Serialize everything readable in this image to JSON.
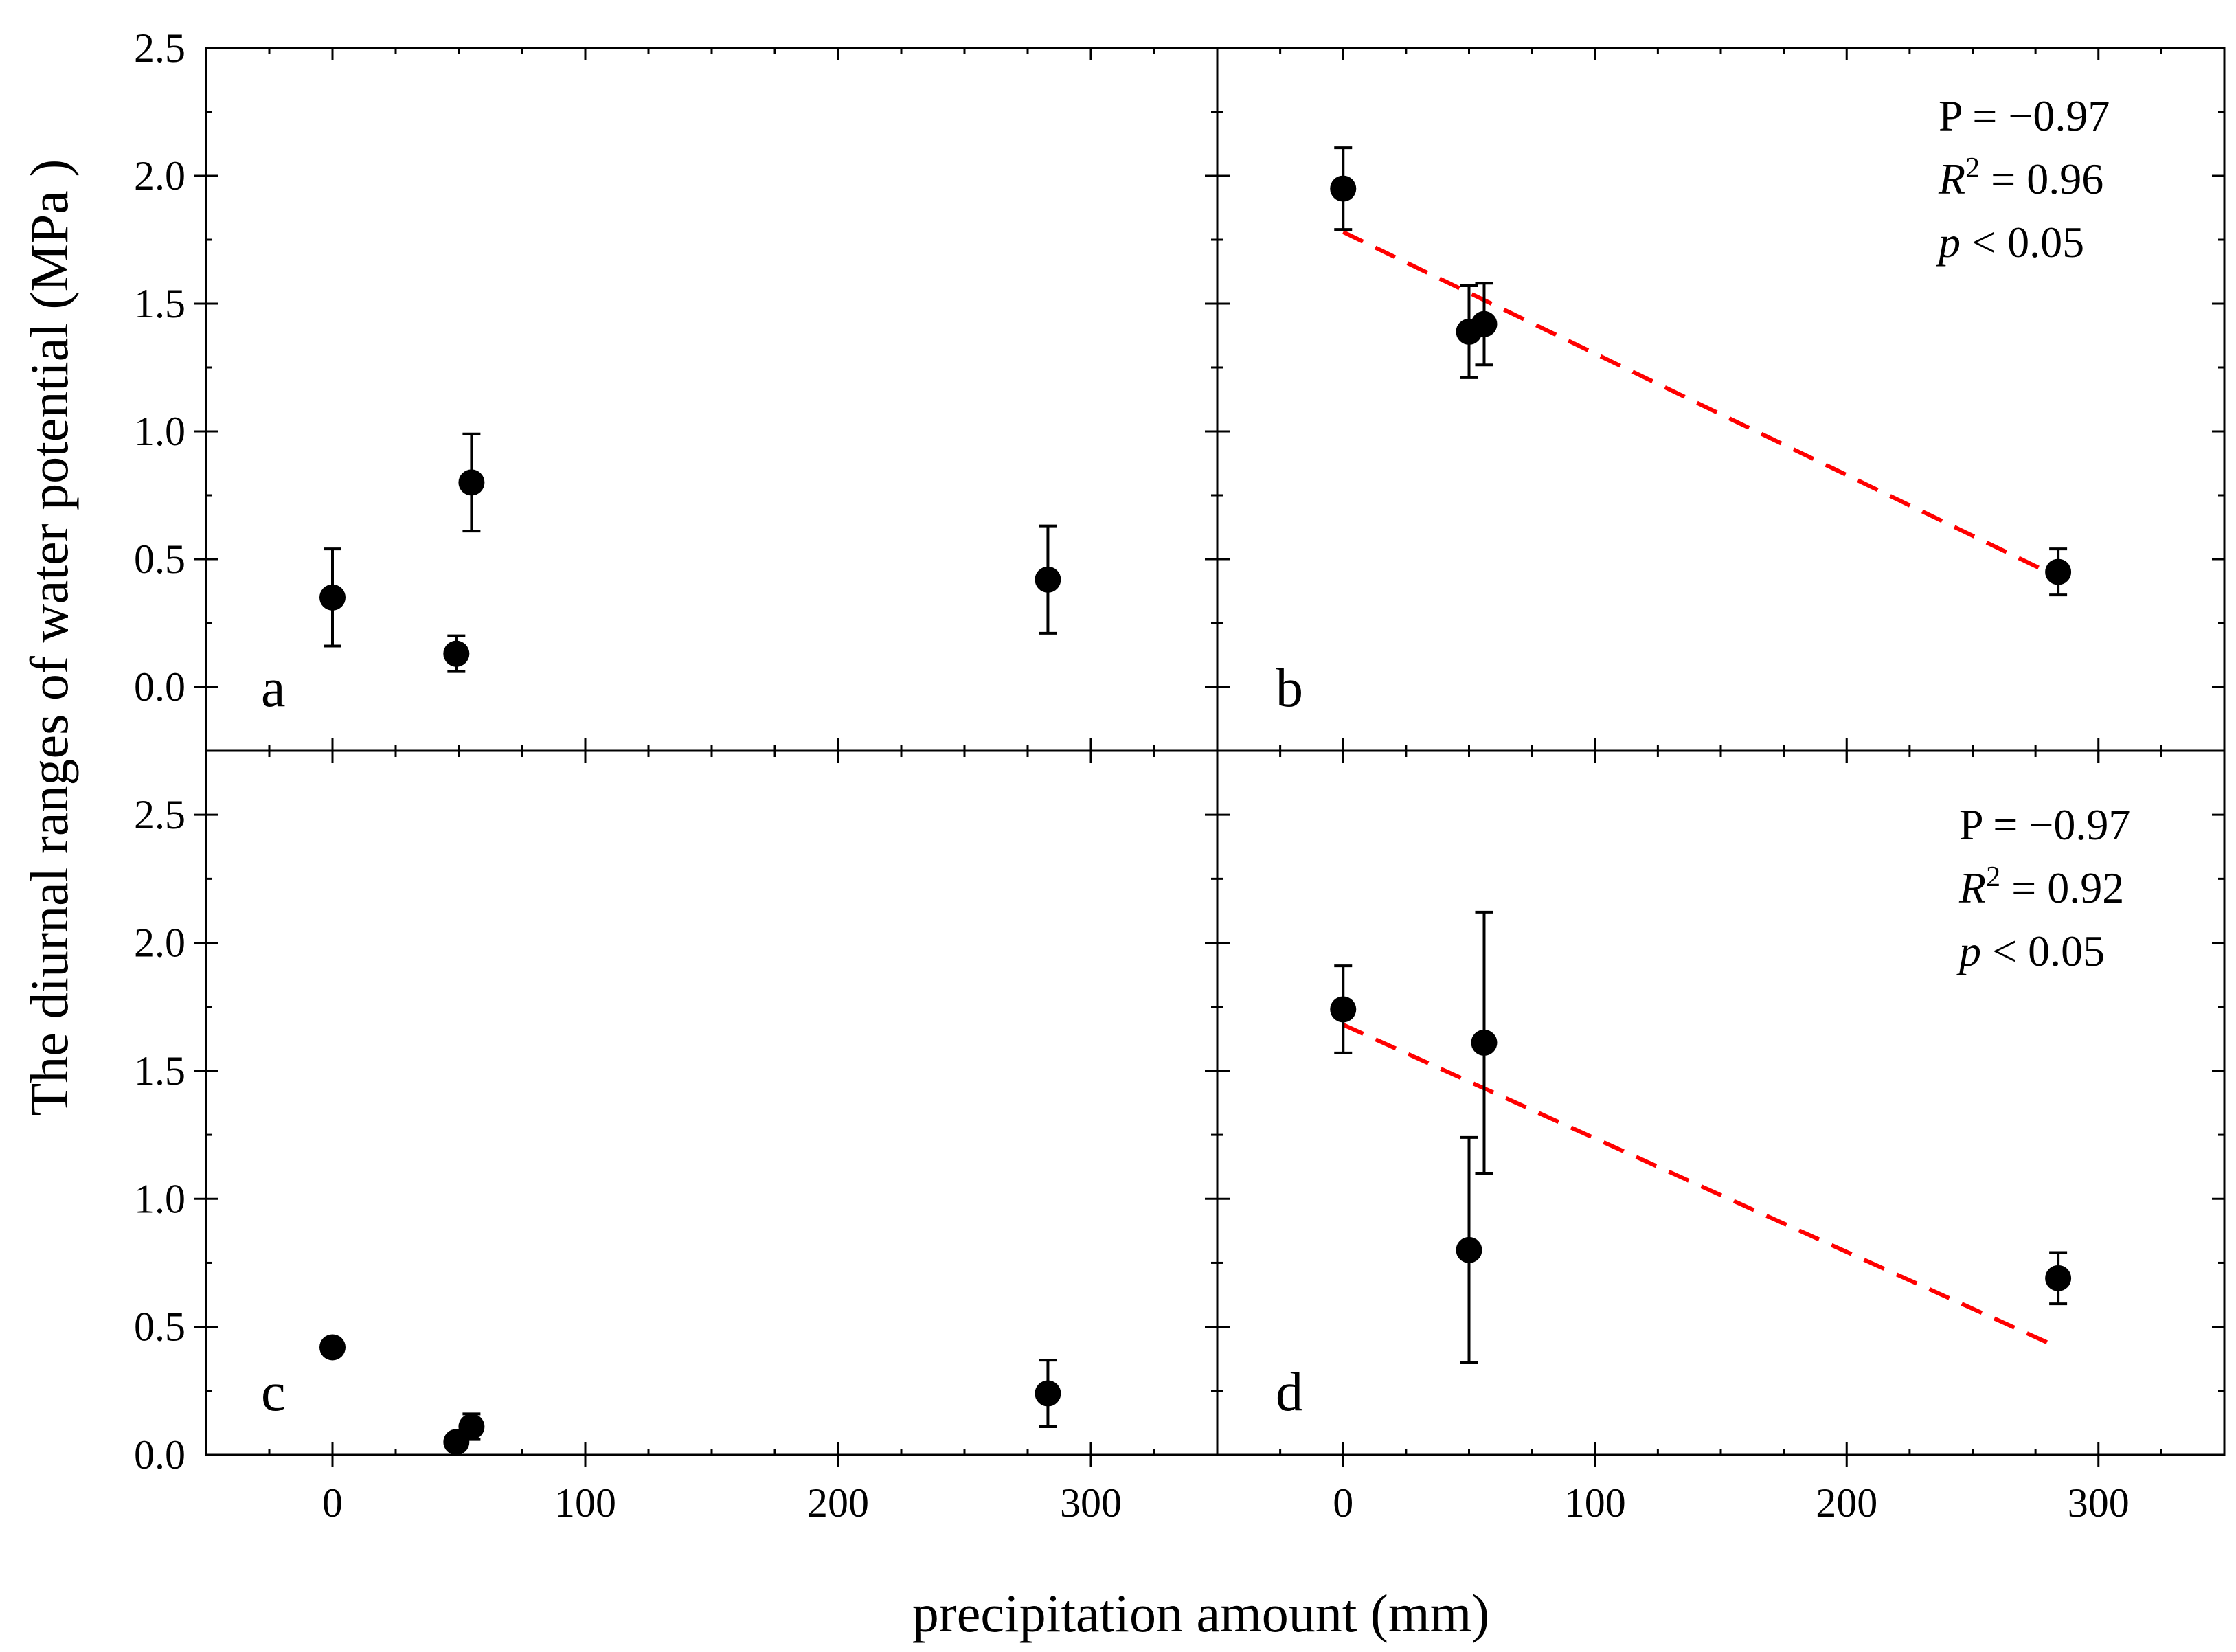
{
  "figure": {
    "ylabel": "The diurnal ranges of water potential (MPa )",
    "xlabel": "precipitation amount (mm)"
  },
  "colors": {
    "axis": "#000000",
    "marker": "#000000",
    "fit": "#ff0000"
  },
  "chart_data": [
    {
      "type": "scatter",
      "panel_label": "a",
      "xlim": [
        -50,
        350
      ],
      "ylim": [
        -0.25,
        2.5
      ],
      "x_ticks": [
        "0",
        "100",
        "200",
        "300"
      ],
      "y_ticks": [
        "0.0",
        "0.5",
        "1.0",
        "1.5",
        "2.0",
        "2.5"
      ],
      "points": [
        {
          "x": 0,
          "y": 0.35,
          "err": 0.19
        },
        {
          "x": 49,
          "y": 0.13,
          "err": 0.07
        },
        {
          "x": 55,
          "y": 0.8,
          "err": 0.19
        },
        {
          "x": 283,
          "y": 0.42,
          "err": 0.21
        }
      ],
      "fit": null,
      "stats": null
    },
    {
      "type": "scatter",
      "panel_label": "b",
      "xlim": [
        -50,
        350
      ],
      "ylim": [
        -0.25,
        2.5
      ],
      "x_ticks": [],
      "y_ticks": [],
      "points": [
        {
          "x": 0,
          "y": 1.95,
          "err": 0.16
        },
        {
          "x": 50,
          "y": 1.39,
          "err": 0.18
        },
        {
          "x": 56,
          "y": 1.42,
          "err": 0.16
        },
        {
          "x": 284,
          "y": 0.45,
          "err": 0.09
        }
      ],
      "fit": {
        "x": [
          0,
          284
        ],
        "y": [
          1.78,
          0.43
        ]
      },
      "stats": {
        "p_label": "P = −0.97",
        "r2_letter": "R",
        "r2_sup": "2",
        "r2_value": " = 0.96",
        "p_letter": "p",
        "p_value": " < 0.05"
      }
    },
    {
      "type": "scatter",
      "panel_label": "c",
      "xlim": [
        -50,
        350
      ],
      "ylim": [
        0,
        2.75
      ],
      "x_ticks": [
        "0",
        "100",
        "200",
        "300"
      ],
      "y_ticks": [
        "0.0",
        "0.5",
        "1.0",
        "1.5",
        "2.0",
        "2.5"
      ],
      "points": [
        {
          "x": 0,
          "y": 0.42,
          "err": 0.02
        },
        {
          "x": 49,
          "y": 0.05,
          "err": 0.02
        },
        {
          "x": 55,
          "y": 0.11,
          "err": 0.05
        },
        {
          "x": 283,
          "y": 0.24,
          "err": 0.13
        }
      ],
      "fit": null,
      "stats": null
    },
    {
      "type": "scatter",
      "panel_label": "d",
      "xlim": [
        -50,
        350
      ],
      "ylim": [
        0,
        2.75
      ],
      "x_ticks": [
        "0",
        "100",
        "200",
        "300"
      ],
      "y_ticks": [],
      "points": [
        {
          "x": 0,
          "y": 1.74,
          "err": 0.17
        },
        {
          "x": 50,
          "y": 0.8,
          "err": 0.44
        },
        {
          "x": 56,
          "y": 1.61,
          "err": 0.51
        },
        {
          "x": 284,
          "y": 0.69,
          "err": 0.1
        }
      ],
      "fit": {
        "x": [
          0,
          284
        ],
        "y": [
          1.68,
          0.42
        ]
      },
      "stats": {
        "p_label": "P = −0.97",
        "r2_letter": "R",
        "r2_sup": "2",
        "r2_value": " = 0.92",
        "p_letter": "p",
        "p_value": " < 0.05"
      }
    }
  ]
}
